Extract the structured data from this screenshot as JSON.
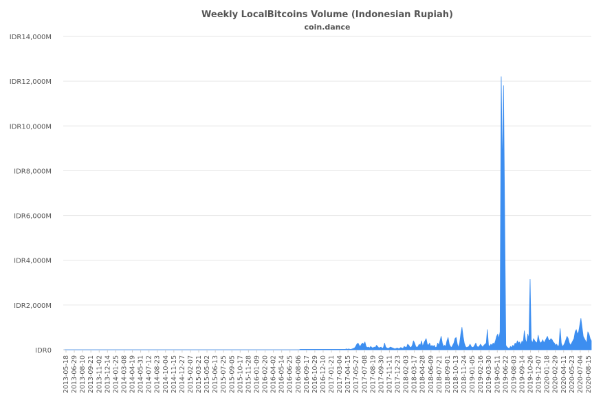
{
  "chart_data": {
    "type": "area",
    "title": "Weekly LocalBitcoins Volume (Indonesian Rupiah)",
    "subtitle": "coin.dance",
    "xlabel": "",
    "ylabel": "",
    "ylim": [
      0,
      14000
    ],
    "y_unit": "IDR millions",
    "grid": true,
    "legend": "none",
    "color": "#3d8ef0",
    "y_ticks": [
      {
        "value": 0,
        "label": "IDR0"
      },
      {
        "value": 2000,
        "label": "IDR2,000M"
      },
      {
        "value": 4000,
        "label": "IDR4,000M"
      },
      {
        "value": 6000,
        "label": "IDR6,000M"
      },
      {
        "value": 8000,
        "label": "IDR8,000M"
      },
      {
        "value": 10000,
        "label": "IDR10,000M"
      },
      {
        "value": 12000,
        "label": "IDR12,000M"
      },
      {
        "value": 14000,
        "label": "IDR14,000M"
      }
    ],
    "x_tick_labels": [
      "2013-05-18",
      "2013-06-29",
      "2013-08-10",
      "2013-09-21",
      "2013-11-02",
      "2013-12-14",
      "2014-01-25",
      "2014-03-08",
      "2014-04-19",
      "2014-05-31",
      "2014-07-12",
      "2014-08-23",
      "2014-10-04",
      "2014-11-15",
      "2014-12-27",
      "2015-02-07",
      "2015-03-21",
      "2015-05-02",
      "2015-06-13",
      "2015-07-25",
      "2015-09-05",
      "2015-10-17",
      "2015-11-28",
      "2016-01-09",
      "2016-02-20",
      "2016-04-02",
      "2016-05-14",
      "2016-06-25",
      "2016-08-06",
      "2016-09-17",
      "2016-10-29",
      "2016-12-10",
      "2017-01-21",
      "2017-03-04",
      "2017-04-15",
      "2017-05-27",
      "2017-07-08",
      "2017-08-19",
      "2017-09-30",
      "2017-11-11",
      "2017-12-23",
      "2018-02-03",
      "2018-03-17",
      "2018-04-28",
      "2018-06-09",
      "2018-07-21",
      "2018-09-01",
      "2018-10-13",
      "2018-11-24",
      "2019-01-05",
      "2019-02-16",
      "2019-03-30",
      "2019-05-11",
      "2019-06-22",
      "2019-08-03",
      "2019-09-14",
      "2019-10-26",
      "2019-12-07",
      "2020-01-18",
      "2020-02-29",
      "2020-04-11",
      "2020-05-23",
      "2020-07-04",
      "2020-08-15"
    ],
    "series": [
      {
        "values": [
          0,
          0,
          0,
          0,
          0,
          0,
          0,
          0,
          0,
          0,
          0,
          0,
          0,
          0,
          0,
          0,
          0,
          0,
          0,
          0,
          0,
          0,
          0,
          0,
          0,
          0,
          0,
          0,
          0,
          0,
          0,
          0,
          0,
          0,
          0,
          0,
          0,
          0,
          0,
          0,
          0,
          0,
          0,
          0,
          0,
          0,
          0,
          0,
          0,
          0,
          0,
          0,
          0,
          0,
          0,
          0,
          0,
          0,
          0,
          0,
          0,
          0,
          0,
          0,
          0,
          0,
          0,
          0,
          0,
          0,
          0,
          0,
          0,
          0,
          0,
          0,
          0,
          0,
          0,
          0,
          0,
          0,
          0,
          0,
          0,
          0,
          0,
          0,
          0,
          0,
          0,
          0,
          0,
          0,
          0,
          0,
          0,
          0,
          0,
          0,
          0,
          0,
          0,
          0,
          0,
          0,
          0,
          0,
          0,
          0,
          0,
          0,
          0,
          0,
          0,
          0,
          0,
          0,
          0,
          0,
          0,
          0,
          0,
          0,
          0,
          0,
          0,
          0,
          0,
          0,
          0,
          0,
          0,
          0,
          0,
          0,
          0,
          0,
          0,
          0,
          0,
          0,
          0,
          0,
          0,
          0,
          0,
          0,
          0,
          0,
          0,
          0,
          0,
          0,
          0,
          0,
          0,
          0,
          0,
          0,
          0,
          0,
          0,
          0,
          0,
          0,
          0,
          0,
          0,
          0,
          0,
          0,
          0,
          0,
          0,
          0,
          0,
          0,
          0,
          0,
          0,
          0,
          0,
          0,
          0,
          0,
          0,
          0,
          0,
          0,
          0,
          0,
          0,
          0,
          0,
          0,
          0,
          0,
          0,
          0,
          0,
          0,
          0,
          0,
          20,
          20,
          20,
          20,
          20,
          20,
          20,
          20,
          20,
          20,
          20,
          20,
          20,
          20,
          20,
          20,
          20,
          20,
          20,
          20,
          20,
          20,
          20,
          20,
          20,
          20,
          20,
          20,
          20,
          20,
          20,
          20,
          20,
          20,
          20,
          20,
          20,
          20,
          20,
          20,
          40,
          20,
          40,
          20,
          20,
          40,
          60,
          80,
          150,
          250,
          300,
          200,
          150,
          250,
          300,
          250,
          350,
          150,
          100,
          120,
          80,
          150,
          100,
          80,
          120,
          100,
          200,
          150,
          80,
          100,
          120,
          60,
          100,
          300,
          120,
          80,
          60,
          80,
          120,
          100,
          80,
          60,
          40,
          60,
          80,
          50,
          60,
          100,
          80,
          60,
          150,
          120,
          100,
          250,
          200,
          120,
          100,
          200,
          400,
          300,
          150,
          100,
          150,
          250,
          200,
          400,
          150,
          300,
          400,
          500,
          250,
          200,
          300,
          150,
          200,
          150,
          200,
          100,
          120,
          300,
          200,
          400,
          600,
          300,
          150,
          200,
          150,
          400,
          550,
          250,
          150,
          100,
          200,
          300,
          500,
          550,
          250,
          100,
          300,
          700,
          1000,
          600,
          300,
          150,
          100,
          120,
          150,
          250,
          150,
          100,
          120,
          200,
          300,
          150,
          120,
          150,
          250,
          180,
          120,
          200,
          250,
          300,
          900,
          200,
          150,
          250,
          200,
          300,
          250,
          400,
          600,
          700,
          500,
          800,
          12200,
          8000,
          11800,
          6000,
          200,
          120,
          80,
          50,
          150,
          100,
          200,
          150,
          300,
          250,
          400,
          300,
          350,
          200,
          400,
          300,
          850,
          450,
          300,
          700,
          500,
          3150,
          450,
          300,
          500,
          400,
          350,
          300,
          650,
          400,
          300,
          350,
          450,
          300,
          400,
          500,
          600,
          450,
          400,
          500,
          450,
          350,
          300,
          200,
          250,
          150,
          200,
          950,
          300,
          150,
          200,
          300,
          450,
          600,
          500,
          300,
          200,
          300,
          400,
          500,
          800,
          900,
          700,
          800,
          1100,
          1400,
          1000,
          600,
          500,
          400,
          300,
          800,
          700,
          500,
          400
        ]
      }
    ]
  }
}
